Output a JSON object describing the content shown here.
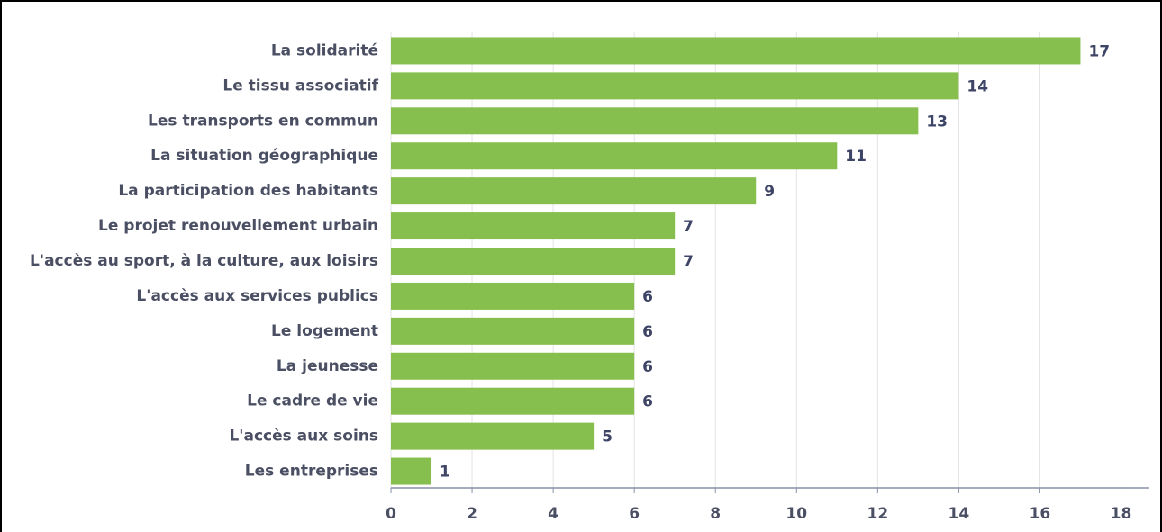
{
  "chart_data": {
    "type": "bar",
    "orientation": "horizontal",
    "categories": [
      "La solidarité",
      "Le tissu associatif",
      "Les transports en commun",
      "La situation géographique",
      "La participation des habitants",
      "Le projet renouvellement urbain",
      "L'accès au sport, à la culture, aux loisirs",
      "L'accès aux services publics",
      "Le logement",
      "La jeunesse",
      "Le cadre de vie",
      "L'accès aux soins",
      "Les entreprises"
    ],
    "values": [
      17,
      14,
      13,
      11,
      9,
      7,
      7,
      6,
      6,
      6,
      6,
      5,
      1
    ],
    "color": "#86bf4d",
    "xlim": [
      0,
      18.7
    ],
    "xticks": [
      0,
      2,
      4,
      6,
      8,
      10,
      12,
      14,
      16,
      18
    ],
    "grid": true
  }
}
